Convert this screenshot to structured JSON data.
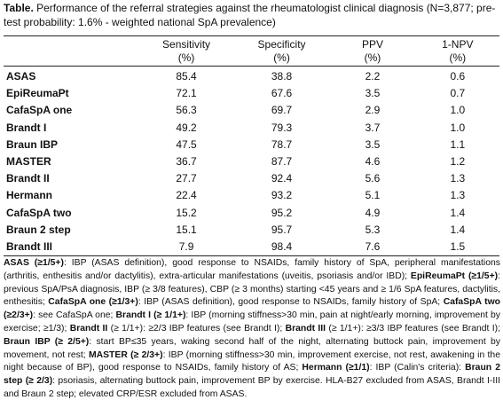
{
  "caption": {
    "label": "Table.",
    "text": " Performance of the referral strategies against the rheumatologist clinical diagnosis (N=3,877; pre-test probability: 1.6% - weighted national SpA prevalence)"
  },
  "table": {
    "headers": [
      {
        "name": "Sensitivity",
        "unit": "(%)"
      },
      {
        "name": "Specificity",
        "unit": "(%)"
      },
      {
        "name": "PPV",
        "unit": "(%)"
      },
      {
        "name": "1-NPV",
        "unit": "(%)"
      }
    ],
    "rows": [
      {
        "label": "ASAS",
        "values": [
          "85.4",
          "38.8",
          "2.2",
          "0.6"
        ]
      },
      {
        "label": "EpiReumaPt",
        "values": [
          "72.1",
          "67.6",
          "3.5",
          "0.7"
        ]
      },
      {
        "label": "CafaSpA one",
        "values": [
          "56.3",
          "69.7",
          "2.9",
          "1.0"
        ]
      },
      {
        "label": "Brandt I",
        "values": [
          "49.2",
          "79.3",
          "3.7",
          "1.0"
        ]
      },
      {
        "label": "Braun IBP",
        "values": [
          "47.5",
          "78.7",
          "3.5",
          "1.1"
        ]
      },
      {
        "label": "MASTER",
        "values": [
          "36.7",
          "87.7",
          "4.6",
          "1.2"
        ]
      },
      {
        "label": "Brandt II",
        "values": [
          "27.7",
          "92.4",
          "5.6",
          "1.3"
        ]
      },
      {
        "label": "Hermann",
        "values": [
          "22.4",
          "93.2",
          "5.1",
          "1.3"
        ]
      },
      {
        "label": "CafaSpA two",
        "values": [
          "15.2",
          "95.2",
          "4.9",
          "1.4"
        ]
      },
      {
        "label": "Braun 2 step",
        "values": [
          "15.1",
          "95.7",
          "5.3",
          "1.4"
        ]
      },
      {
        "label": "Brandt III",
        "values": [
          "7.9",
          "98.4",
          "7.6",
          "1.5"
        ]
      }
    ]
  },
  "footnote": [
    {
      "b": true,
      "t": "ASAS (≥1/5+)"
    },
    {
      "b": false,
      "t": ": IBP (ASAS definition), good response to NSAIDs, family history of SpA, peripheral manifestations (arthritis, enthesitis and/or dactylitis), extra-articular manifestations (uveitis, psoriasis and/or IBD); "
    },
    {
      "b": true,
      "t": "EpiReumaPt (≥1/5+)"
    },
    {
      "b": false,
      "t": ": previous SpA/PsA diagnosis, IBP (≥ 3/8 features), CBP (≥ 3 months) starting <45 years and ≥ 1/6 SpA features, dactylitis, enthesitis; "
    },
    {
      "b": true,
      "t": "CafaSpA one (≥1/3+)"
    },
    {
      "b": false,
      "t": ": IBP (ASAS definition), good response to NSAIDs, family history of SpA; "
    },
    {
      "b": true,
      "t": "CafaSpA two (≥2/3+)"
    },
    {
      "b": false,
      "t": ": see CafaSpA one; "
    },
    {
      "b": true,
      "t": "Brandt I (≥ 1/1+)"
    },
    {
      "b": false,
      "t": ": IBP (morning stiffness>30 min, pain at night/early morning, improvement by exercise; ≥1/3); "
    },
    {
      "b": true,
      "t": "Brandt II"
    },
    {
      "b": false,
      "t": " (≥ 1/1+): ≥2/3 IBP features (see Brandt I); "
    },
    {
      "b": true,
      "t": "Brandt III"
    },
    {
      "b": false,
      "t": " (≥ 1/1+): ≥3/3 IBP features (see Brandt I); "
    },
    {
      "b": true,
      "t": "Braun IBP (≥ 2/5+)"
    },
    {
      "b": false,
      "t": ": start BP≤35 years, waking second half of the night, alternating buttock pain, improvement by movement, not rest; "
    },
    {
      "b": true,
      "t": "MASTER (≥ 2/3+)"
    },
    {
      "b": false,
      "t": ": IBP (morning stiffness>30 min, improvement exercise, not rest, awakening in the night because of BP), good response to NSAIDs, family history of AS; "
    },
    {
      "b": true,
      "t": "Hermann (≥1/1)"
    },
    {
      "b": false,
      "t": ": IBP (Calin's criteria): "
    },
    {
      "b": true,
      "t": "Braun 2 step (≥ 2/3)"
    },
    {
      "b": false,
      "t": ": psoriasis, alternating buttock pain, improvement BP by exercise. HLA-B27 excluded from ASAS, Brandt I-III and Braun 2 step; elevated CRP/ESR excluded from ASAS."
    }
  ]
}
